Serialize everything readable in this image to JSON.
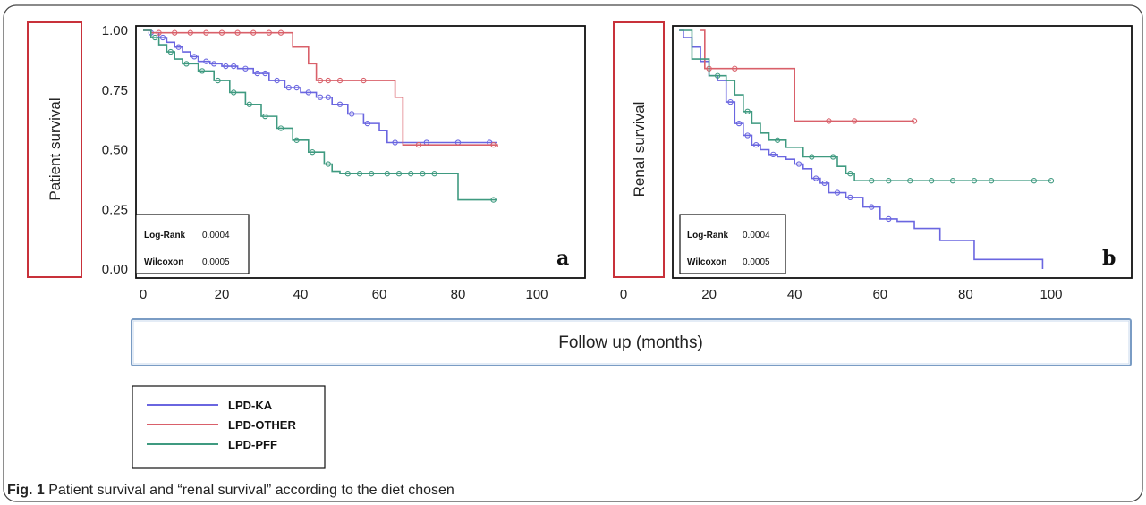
{
  "caption": {
    "prefix": "Fig. 1",
    "text": "Patient survival and “renal survival” according to the diet chosen"
  },
  "shared_x_label": "Follow up (months)",
  "legend": [
    {
      "name": "LPD-KA",
      "color": "#6a66e0"
    },
    {
      "name": "LPD-OTHER",
      "color": "#d9606a"
    },
    {
      "name": "LPD-PFF",
      "color": "#3f9a80"
    }
  ],
  "chart_data": [
    {
      "type": "line",
      "panel_label": "a",
      "ylabel": "Patient survival",
      "xlim": [
        0,
        100
      ],
      "ylim": [
        0,
        1
      ],
      "x_ticks": [
        "0",
        "20",
        "40",
        "60",
        "80",
        "100"
      ],
      "y_ticks": [
        "0.00",
        "0.25",
        "0.50",
        "0.75",
        "1.00"
      ],
      "stats": [
        {
          "label": "Log-Rank",
          "value": "0.0004"
        },
        {
          "label": "Wilcoxon",
          "value": "0.0005"
        }
      ],
      "series": [
        {
          "name": "LPD-KA",
          "color": "#6a66e0",
          "x": [
            0,
            2,
            4,
            6,
            8,
            10,
            12,
            14,
            17,
            20,
            24,
            28,
            32,
            36,
            40,
            44,
            48,
            52,
            56,
            60,
            62,
            90
          ],
          "y": [
            1.0,
            0.99,
            0.97,
            0.95,
            0.93,
            0.91,
            0.89,
            0.87,
            0.86,
            0.85,
            0.84,
            0.82,
            0.79,
            0.76,
            0.74,
            0.72,
            0.69,
            0.65,
            0.61,
            0.58,
            0.53,
            0.53
          ],
          "censor_x": [
            2,
            5,
            9,
            13,
            16,
            18,
            21,
            23,
            26,
            29,
            31,
            34,
            37,
            39,
            42,
            45,
            47,
            50,
            53,
            57,
            64,
            72,
            80,
            88
          ]
        },
        {
          "name": "LPD-OTHER",
          "color": "#d9606a",
          "x": [
            0,
            2,
            36,
            38,
            42,
            44,
            62,
            64,
            66,
            90
          ],
          "y": [
            1.0,
            0.99,
            0.99,
            0.93,
            0.86,
            0.79,
            0.79,
            0.72,
            0.52,
            0.51
          ],
          "censor_x": [
            4,
            8,
            12,
            16,
            20,
            24,
            28,
            32,
            35,
            45,
            47,
            50,
            56,
            70,
            89
          ]
        },
        {
          "name": "LPD-PFF",
          "color": "#3f9a80",
          "x": [
            0,
            2,
            4,
            6,
            8,
            10,
            14,
            18,
            22,
            26,
            30,
            34,
            38,
            42,
            46,
            48,
            50,
            78,
            80,
            90
          ],
          "y": [
            1.0,
            0.97,
            0.94,
            0.91,
            0.88,
            0.86,
            0.83,
            0.79,
            0.74,
            0.69,
            0.64,
            0.59,
            0.54,
            0.49,
            0.44,
            0.41,
            0.4,
            0.4,
            0.29,
            0.29
          ],
          "censor_x": [
            3,
            7,
            11,
            15,
            19,
            23,
            27,
            31,
            35,
            39,
            43,
            47,
            52,
            55,
            58,
            62,
            65,
            68,
            71,
            74,
            89
          ]
        }
      ]
    },
    {
      "type": "line",
      "panel_label": "b",
      "ylabel": "Renal survival",
      "xlim": [
        0,
        100
      ],
      "ylim": [
        0,
        1
      ],
      "x_ticks": [
        "0",
        "20",
        "40",
        "60",
        "80",
        "100"
      ],
      "y_ticks": [],
      "stats": [
        {
          "label": "Log-Rank",
          "value": "0.0004"
        },
        {
          "label": "Wilcoxon",
          "value": "0.0005"
        }
      ],
      "series": [
        {
          "name": "LPD-KA",
          "color": "#6a66e0",
          "x": [
            13,
            14,
            16,
            18,
            20,
            22,
            24,
            26,
            28,
            30,
            32,
            34,
            36,
            38,
            40,
            42,
            44,
            46,
            48,
            52,
            56,
            60,
            64,
            68,
            74,
            82,
            98
          ],
          "y": [
            1.0,
            0.97,
            0.93,
            0.87,
            0.81,
            0.79,
            0.7,
            0.61,
            0.56,
            0.52,
            0.5,
            0.48,
            0.47,
            0.46,
            0.44,
            0.42,
            0.38,
            0.36,
            0.32,
            0.3,
            0.26,
            0.21,
            0.2,
            0.17,
            0.12,
            0.04,
            0.0
          ],
          "censor_x": [
            25,
            27,
            29,
            31,
            35,
            41,
            45,
            47,
            50,
            53,
            58,
            62
          ]
        },
        {
          "name": "LPD-OTHER",
          "color": "#d9606a",
          "x": [
            18,
            19,
            40,
            68
          ],
          "y": [
            1.0,
            0.84,
            0.62,
            0.62
          ],
          "censor_x": [
            20,
            26,
            48,
            54,
            68
          ]
        },
        {
          "name": "LPD-PFF",
          "color": "#3f9a80",
          "x": [
            13,
            16,
            20,
            24,
            26,
            28,
            30,
            32,
            34,
            38,
            42,
            46,
            50,
            52,
            54,
            100
          ],
          "y": [
            1.0,
            0.88,
            0.81,
            0.79,
            0.73,
            0.66,
            0.61,
            0.57,
            0.54,
            0.51,
            0.47,
            0.47,
            0.43,
            0.4,
            0.37,
            0.37
          ],
          "censor_x": [
            22,
            29,
            36,
            44,
            49,
            53,
            58,
            62,
            67,
            72,
            77,
            82,
            86,
            96,
            100
          ]
        }
      ]
    }
  ]
}
